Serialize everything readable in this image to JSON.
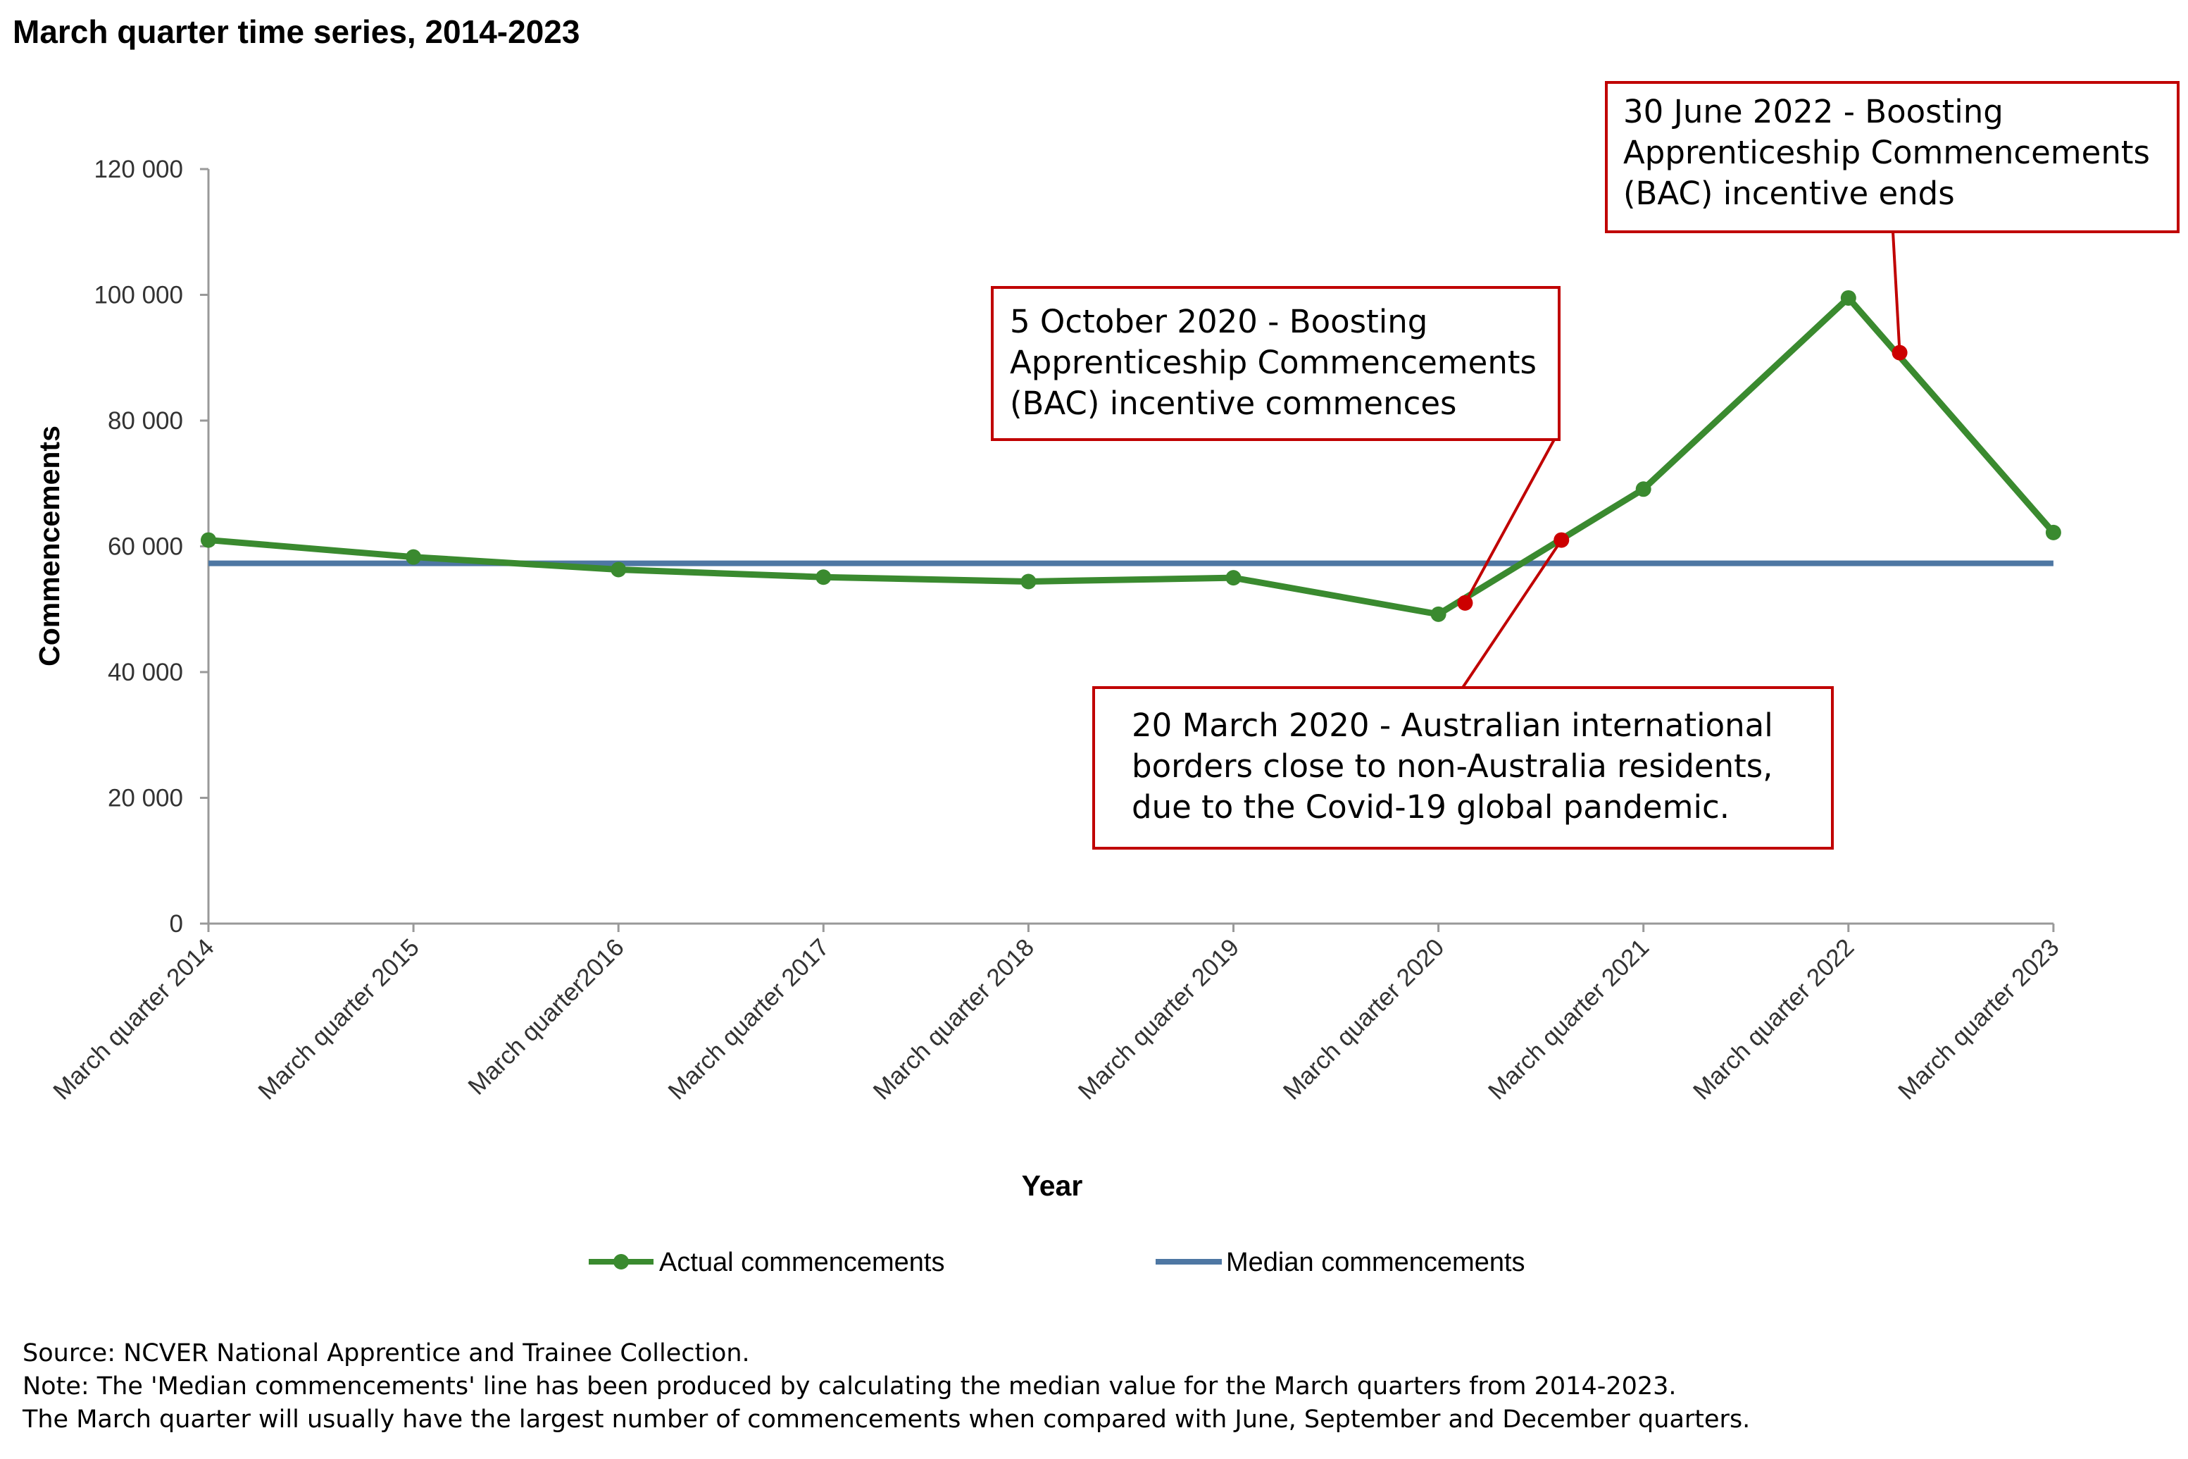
{
  "chart_data": {
    "type": "line",
    "title": "March quarter time series, 2014-2023",
    "xlabel": "Year",
    "ylabel": "Commencements",
    "categories": [
      "March quarter 2014",
      "March quarter 2015",
      "March quarter2016",
      "March quarter 2017",
      "March quarter 2018",
      "March quarter 2019",
      "March quarter 2020",
      "March quarter 2021",
      "March quarter 2022",
      "March quarter 2023"
    ],
    "ylim": [
      0,
      120000
    ],
    "yticks": [
      "0",
      "20 000",
      "40 000",
      "60 000",
      "80 000",
      "100 000",
      "120 000"
    ],
    "grid": false,
    "legend_position": "bottom",
    "series": [
      {
        "name": "Actual commencements",
        "color": "#3a8a2f",
        "marker": "circle",
        "values": [
          61000,
          58300,
          56300,
          55100,
          54400,
          55000,
          49200,
          69100,
          99500,
          62200
        ]
      },
      {
        "name": "Median commencements",
        "color": "#4e77a3",
        "marker": "none",
        "values": [
          57300,
          57300,
          57300,
          57300,
          57300,
          57300,
          57300,
          57300,
          57300,
          57300
        ]
      }
    ],
    "event_markers": [
      {
        "x_position": 6.13,
        "value": 51000,
        "color": "#cc0000"
      },
      {
        "x_position": 6.6,
        "value": 61000,
        "color": "#cc0000"
      },
      {
        "x_position": 8.25,
        "value": 90800,
        "color": "#cc0000"
      }
    ],
    "annotations": [
      {
        "lines": [
          "5 October 2020 - Boosting",
          "Apprenticeship Commencements",
          "(BAC) incentive commences"
        ]
      },
      {
        "lines": [
          "30 June 2022 - Boosting",
          "Apprenticeship Commencements",
          "(BAC) incentive ends"
        ]
      },
      {
        "lines": [
          "20 March 2020 - Australian international",
          "borders close to non-Australia residents,",
          "due to the Covid-19 global pandemic."
        ]
      }
    ],
    "annotation_border_color": "#c00000"
  },
  "footnotes": [
    "Source: NCVER National Apprentice and Trainee Collection.",
    "Note: The 'Median commencements' line has been produced by calculating the median value for the March quarters from 2014-2023.",
    "The March quarter will usually have the largest number of commencements when compared with June, September and December quarters."
  ]
}
